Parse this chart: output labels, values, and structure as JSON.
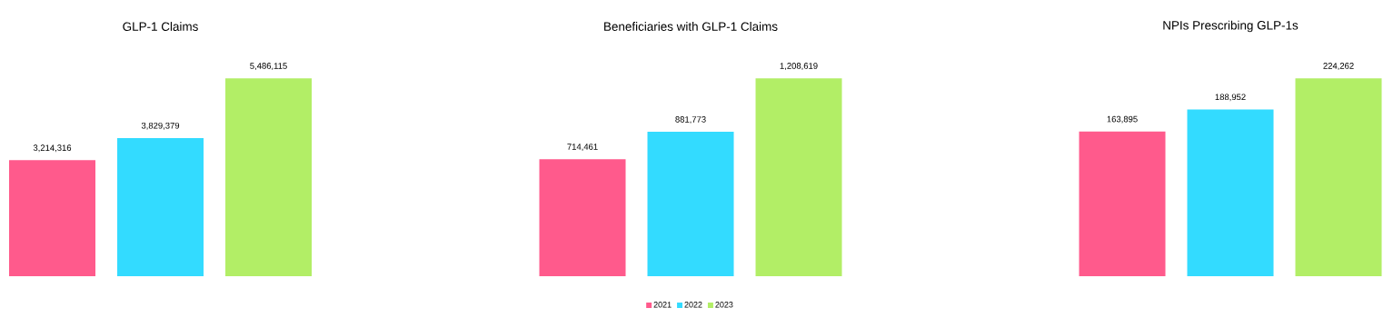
{
  "chart_data": [
    {
      "type": "bar",
      "title": "GLP-1 Claims",
      "categories": [
        null
      ],
      "legend": false,
      "series": [
        {
          "color": "#ff5a8c",
          "values": [
            3214316
          ],
          "value_labels": [
            "3,214,316"
          ]
        },
        {
          "color": "#33dbff",
          "values": [
            3829379
          ],
          "value_labels": [
            "3,829,379"
          ]
        },
        {
          "color": "#b2ee66",
          "values": [
            5486115
          ],
          "value_labels": [
            "5,486,115"
          ]
        }
      ]
    },
    {
      "type": "bar",
      "title": "Beneficiaries with GLP-1 Claims",
      "categories": [
        null
      ],
      "legend": "bottom",
      "series": [
        {
          "name": "2021",
          "color": "#ff5a8c",
          "values": [
            714461
          ],
          "value_labels": [
            "714,461"
          ]
        },
        {
          "name": "2022",
          "color": "#33dbff",
          "values": [
            881773
          ],
          "value_labels": [
            "881,773"
          ]
        },
        {
          "name": "2023",
          "color": "#b2ee66",
          "values": [
            1208619
          ],
          "value_labels": [
            "1,208,619"
          ]
        }
      ]
    },
    {
      "type": "bar",
      "title": "NPIs Prescribing GLP-1s",
      "categories": [
        null
      ],
      "legend": false,
      "series": [
        {
          "color": "#ff5a8c",
          "values": [
            163895
          ],
          "value_labels": [
            "163,895"
          ]
        },
        {
          "color": "#33dbff",
          "values": [
            188952
          ],
          "value_labels": [
            "188,952"
          ]
        },
        {
          "color": "#b2ee66",
          "values": [
            224262
          ],
          "value_labels": [
            "224,262"
          ]
        }
      ]
    }
  ]
}
